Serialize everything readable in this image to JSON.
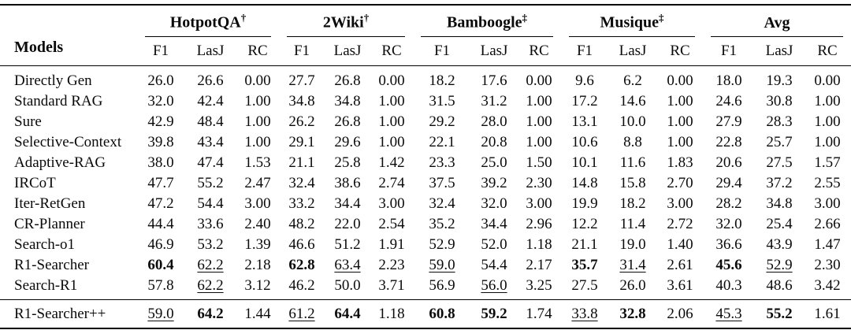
{
  "table": {
    "models_header": "Models",
    "subheaders": [
      "F1",
      "LasJ",
      "RC"
    ],
    "groups": [
      {
        "label": "HotpotQA",
        "mark": "†"
      },
      {
        "label": "2Wiki",
        "mark": "†"
      },
      {
        "label": "Bamboogle",
        "mark": "‡"
      },
      {
        "label": "Musique",
        "mark": "‡"
      },
      {
        "label": "Avg",
        "mark": ""
      }
    ],
    "rows": [
      {
        "model": "Directly Gen",
        "values": [
          "26.0",
          "26.6",
          "0.00",
          "27.7",
          "26.8",
          "0.00",
          "18.2",
          "17.6",
          "0.00",
          "9.6",
          "6.2",
          "0.00",
          "18.0",
          "19.3",
          "0.00"
        ],
        "styles": [
          "",
          "",
          "",
          "",
          "",
          "",
          "",
          "",
          "",
          "",
          "",
          "",
          "",
          "",
          ""
        ]
      },
      {
        "model": "Standard RAG",
        "values": [
          "32.0",
          "42.4",
          "1.00",
          "34.8",
          "34.8",
          "1.00",
          "31.5",
          "31.2",
          "1.00",
          "17.2",
          "14.6",
          "1.00",
          "24.6",
          "30.8",
          "1.00"
        ],
        "styles": [
          "",
          "",
          "",
          "",
          "",
          "",
          "",
          "",
          "",
          "",
          "",
          "",
          "",
          "",
          ""
        ]
      },
      {
        "model": "Sure",
        "values": [
          "42.9",
          "48.4",
          "1.00",
          "26.2",
          "26.8",
          "1.00",
          "29.2",
          "28.0",
          "1.00",
          "13.1",
          "10.0",
          "1.00",
          "27.9",
          "28.3",
          "1.00"
        ],
        "styles": [
          "",
          "",
          "",
          "",
          "",
          "",
          "",
          "",
          "",
          "",
          "",
          "",
          "",
          "",
          ""
        ]
      },
      {
        "model": "Selective-Context",
        "values": [
          "39.8",
          "43.4",
          "1.00",
          "29.1",
          "29.6",
          "1.00",
          "22.1",
          "20.8",
          "1.00",
          "10.6",
          "8.8",
          "1.00",
          "22.8",
          "25.7",
          "1.00"
        ],
        "styles": [
          "",
          "",
          "",
          "",
          "",
          "",
          "",
          "",
          "",
          "",
          "",
          "",
          "",
          "",
          ""
        ]
      },
      {
        "model": "Adaptive-RAG",
        "values": [
          "38.0",
          "47.4",
          "1.53",
          "21.1",
          "25.8",
          "1.42",
          "23.3",
          "25.0",
          "1.50",
          "10.1",
          "11.6",
          "1.83",
          "20.6",
          "27.5",
          "1.57"
        ],
        "styles": [
          "",
          "",
          "",
          "",
          "",
          "",
          "",
          "",
          "",
          "",
          "",
          "",
          "",
          "",
          ""
        ]
      },
      {
        "model": "IRCoT",
        "values": [
          "47.7",
          "55.2",
          "2.47",
          "32.4",
          "38.6",
          "2.74",
          "37.5",
          "39.2",
          "2.30",
          "14.8",
          "15.8",
          "2.70",
          "29.4",
          "37.2",
          "2.55"
        ],
        "styles": [
          "",
          "",
          "",
          "",
          "",
          "",
          "",
          "",
          "",
          "",
          "",
          "",
          "",
          "",
          ""
        ]
      },
      {
        "model": "Iter-RetGen",
        "values": [
          "47.2",
          "54.4",
          "3.00",
          "33.2",
          "34.4",
          "3.00",
          "32.4",
          "32.0",
          "3.00",
          "19.9",
          "18.2",
          "3.00",
          "28.2",
          "34.8",
          "3.00"
        ],
        "styles": [
          "",
          "",
          "",
          "",
          "",
          "",
          "",
          "",
          "",
          "",
          "",
          "",
          "",
          "",
          ""
        ]
      },
      {
        "model": "CR-Planner",
        "values": [
          "44.4",
          "33.6",
          "2.40",
          "48.2",
          "22.0",
          "2.54",
          "35.2",
          "34.4",
          "2.96",
          "12.2",
          "11.4",
          "2.72",
          "32.0",
          "25.4",
          "2.66"
        ],
        "styles": [
          "",
          "",
          "",
          "",
          "",
          "",
          "",
          "",
          "",
          "",
          "",
          "",
          "",
          "",
          ""
        ]
      },
      {
        "model": "Search-o1",
        "values": [
          "46.9",
          "53.2",
          "1.39",
          "46.6",
          "51.2",
          "1.91",
          "52.9",
          "52.0",
          "1.18",
          "21.1",
          "19.0",
          "1.40",
          "36.6",
          "43.9",
          "1.47"
        ],
        "styles": [
          "",
          "",
          "",
          "",
          "",
          "",
          "",
          "",
          "",
          "",
          "",
          "",
          "",
          "",
          ""
        ]
      },
      {
        "model": "R1-Searcher",
        "values": [
          "60.4",
          "62.2",
          "2.18",
          "62.8",
          "63.4",
          "2.23",
          "59.0",
          "54.4",
          "2.17",
          "35.7",
          "31.4",
          "2.61",
          "45.6",
          "52.9",
          "2.30"
        ],
        "styles": [
          "b",
          "u",
          "",
          "b",
          "u",
          "",
          "u",
          "",
          "",
          "b",
          "u",
          "",
          "b",
          "u",
          ""
        ]
      },
      {
        "model": "Search-R1",
        "values": [
          "57.8",
          "62.2",
          "3.12",
          "46.2",
          "50.0",
          "3.71",
          "56.9",
          "56.0",
          "3.25",
          "27.5",
          "26.0",
          "3.61",
          "40.3",
          "48.6",
          "3.42"
        ],
        "styles": [
          "",
          "u",
          "",
          "",
          "",
          "",
          "",
          "u",
          "",
          "",
          "",
          "",
          "",
          "",
          ""
        ]
      }
    ],
    "final_rows": [
      {
        "model": "R1-Searcher++",
        "values": [
          "59.0",
          "64.2",
          "1.44",
          "61.2",
          "64.4",
          "1.18",
          "60.8",
          "59.2",
          "1.74",
          "33.8",
          "32.8",
          "2.06",
          "45.3",
          "55.2",
          "1.61"
        ],
        "styles": [
          "u",
          "b",
          "",
          "u",
          "b",
          "",
          "b",
          "b",
          "",
          "u",
          "b",
          "",
          "u",
          "b",
          ""
        ]
      }
    ]
  },
  "colors": {
    "text": "#0a0a0a",
    "rule": "#000000",
    "background": "#ffffff"
  }
}
